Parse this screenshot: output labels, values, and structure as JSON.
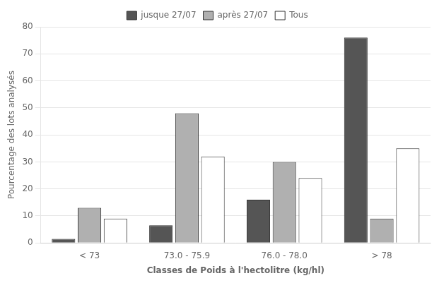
{
  "chart_data": {
    "type": "bar",
    "categories": [
      "< 73",
      "73.0 - 75.9",
      "76.0 - 78.0",
      "> 78"
    ],
    "series": [
      {
        "name": "jusque 27/07",
        "color": "#555555",
        "values": [
          1.5,
          6.5,
          16,
          76
        ]
      },
      {
        "name": "après 27/07",
        "color": "#b0b0b0",
        "values": [
          13,
          48,
          30,
          9
        ]
      },
      {
        "name": "Tous",
        "color": "#ffffff",
        "values": [
          9,
          32,
          24,
          35
        ]
      }
    ],
    "xlabel": "Classes de Poids à l'hectolitre (kg/hl)",
    "ylabel": "Pourcentage des lots analysés",
    "ylim": [
      0,
      80
    ],
    "yticks": [
      0,
      10,
      20,
      30,
      40,
      50,
      60,
      70,
      80
    ],
    "grid": true,
    "legend": "top"
  }
}
